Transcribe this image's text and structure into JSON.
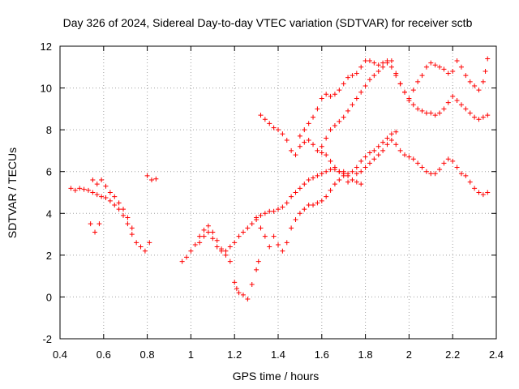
{
  "chart_data": {
    "type": "scatter",
    "title": "Day 326 of 2024, Sidereal Day-to-day VTEC variation (SDTVAR) for receiver sctb",
    "xlabel": "GPS time / hours",
    "ylabel": "SDTVAR / TECUs",
    "xlim": [
      0.4,
      2.4
    ],
    "ylim": [
      -2,
      12
    ],
    "xticks": [
      0.4,
      0.6,
      0.8,
      1,
      1.2,
      1.4,
      1.6,
      1.8,
      2,
      2.2,
      2.4
    ],
    "xtick_labels": [
      "0.4",
      "0.6",
      "0.8",
      "1",
      "1.2",
      "1.4",
      "1.6",
      "1.8",
      "2",
      "2.2",
      "2.4"
    ],
    "yticks": [
      -2,
      0,
      2,
      4,
      6,
      8,
      10,
      12
    ],
    "ytick_labels": [
      "-2",
      "0",
      "2",
      "4",
      "6",
      "8",
      "10",
      "12"
    ],
    "grid": true,
    "marker": "+",
    "marker_color": "#ff0000",
    "series": [
      {
        "name": "SDTVAR",
        "points": [
          [
            0.45,
            5.2
          ],
          [
            0.47,
            5.1
          ],
          [
            0.49,
            5.2
          ],
          [
            0.51,
            5.15
          ],
          [
            0.53,
            5.1
          ],
          [
            0.55,
            5.0
          ],
          [
            0.57,
            4.9
          ],
          [
            0.59,
            4.8
          ],
          [
            0.61,
            4.75
          ],
          [
            0.63,
            4.6
          ],
          [
            0.65,
            4.4
          ],
          [
            0.67,
            4.2
          ],
          [
            0.69,
            3.9
          ],
          [
            0.71,
            3.5
          ],
          [
            0.73,
            3.0
          ],
          [
            0.75,
            2.6
          ],
          [
            0.77,
            2.4
          ],
          [
            0.79,
            2.2
          ],
          [
            0.81,
            2.6
          ],
          [
            0.55,
            5.6
          ],
          [
            0.57,
            5.4
          ],
          [
            0.59,
            5.6
          ],
          [
            0.61,
            5.3
          ],
          [
            0.63,
            5.0
          ],
          [
            0.65,
            4.8
          ],
          [
            0.67,
            4.5
          ],
          [
            0.69,
            4.2
          ],
          [
            0.71,
            3.8
          ],
          [
            0.73,
            3.3
          ],
          [
            0.54,
            3.5
          ],
          [
            0.56,
            3.1
          ],
          [
            0.58,
            3.5
          ],
          [
            0.8,
            5.8
          ],
          [
            0.82,
            5.6
          ],
          [
            0.84,
            5.65
          ],
          [
            0.96,
            1.7
          ],
          [
            0.98,
            1.9
          ],
          [
            1.0,
            2.2
          ],
          [
            1.02,
            2.5
          ],
          [
            1.04,
            2.9
          ],
          [
            1.06,
            3.2
          ],
          [
            1.08,
            3.4
          ],
          [
            1.1,
            3.1
          ],
          [
            1.12,
            2.7
          ],
          [
            1.14,
            2.3
          ],
          [
            1.16,
            2.2
          ],
          [
            1.18,
            2.4
          ],
          [
            1.2,
            2.6
          ],
          [
            1.22,
            2.9
          ],
          [
            1.24,
            3.1
          ],
          [
            1.26,
            3.3
          ],
          [
            1.28,
            3.5
          ],
          [
            1.3,
            3.8
          ],
          [
            1.32,
            3.9
          ],
          [
            1.34,
            4.0
          ],
          [
            1.36,
            4.1
          ],
          [
            1.38,
            4.1
          ],
          [
            1.4,
            4.2
          ],
          [
            1.42,
            4.3
          ],
          [
            1.44,
            4.5
          ],
          [
            1.46,
            4.8
          ],
          [
            1.48,
            5.0
          ],
          [
            1.5,
            5.2
          ],
          [
            1.52,
            5.4
          ],
          [
            1.54,
            5.6
          ],
          [
            1.56,
            5.7
          ],
          [
            1.58,
            5.8
          ],
          [
            1.6,
            5.9
          ],
          [
            1.62,
            6.0
          ],
          [
            1.64,
            6.1
          ],
          [
            1.66,
            6.1
          ],
          [
            1.68,
            6.0
          ],
          [
            1.7,
            6.0
          ],
          [
            1.72,
            5.9
          ],
          [
            1.74,
            6.0
          ],
          [
            1.76,
            6.2
          ],
          [
            1.78,
            6.5
          ],
          [
            1.8,
            6.7
          ],
          [
            1.82,
            6.9
          ],
          [
            1.84,
            7.0
          ],
          [
            1.86,
            7.2
          ],
          [
            1.88,
            7.4
          ],
          [
            1.9,
            7.6
          ],
          [
            1.92,
            7.5
          ],
          [
            1.94,
            7.3
          ],
          [
            1.96,
            7.0
          ],
          [
            1.98,
            6.8
          ],
          [
            2.0,
            6.7
          ],
          [
            2.02,
            6.6
          ],
          [
            2.04,
            6.4
          ],
          [
            2.06,
            6.2
          ],
          [
            2.08,
            6.0
          ],
          [
            2.1,
            5.9
          ],
          [
            2.12,
            5.9
          ],
          [
            2.14,
            6.1
          ],
          [
            2.16,
            6.4
          ],
          [
            2.18,
            6.6
          ],
          [
            2.2,
            6.5
          ],
          [
            2.22,
            6.2
          ],
          [
            2.24,
            5.9
          ],
          [
            2.26,
            5.8
          ],
          [
            2.28,
            5.5
          ],
          [
            2.3,
            5.2
          ],
          [
            2.32,
            5.0
          ],
          [
            2.34,
            4.9
          ],
          [
            2.36,
            5.0
          ],
          [
            1.04,
            2.6
          ],
          [
            1.06,
            2.9
          ],
          [
            1.08,
            3.1
          ],
          [
            1.1,
            2.8
          ],
          [
            1.12,
            2.4
          ],
          [
            1.14,
            2.2
          ],
          [
            1.16,
            2.0
          ],
          [
            1.18,
            1.7
          ],
          [
            1.2,
            0.7
          ],
          [
            1.21,
            0.4
          ],
          [
            1.22,
            0.2
          ],
          [
            1.24,
            0.1
          ],
          [
            1.26,
            -0.1
          ],
          [
            1.28,
            0.6
          ],
          [
            1.3,
            1.3
          ],
          [
            1.31,
            1.7
          ],
          [
            1.3,
            3.7
          ],
          [
            1.32,
            3.3
          ],
          [
            1.34,
            2.9
          ],
          [
            1.36,
            2.4
          ],
          [
            1.38,
            2.9
          ],
          [
            1.4,
            2.5
          ],
          [
            1.42,
            2.2
          ],
          [
            1.44,
            2.6
          ],
          [
            1.46,
            3.3
          ],
          [
            1.48,
            3.7
          ],
          [
            1.5,
            4.0
          ],
          [
            1.52,
            4.2
          ],
          [
            1.54,
            4.4
          ],
          [
            1.56,
            4.4
          ],
          [
            1.58,
            4.5
          ],
          [
            1.6,
            4.6
          ],
          [
            1.62,
            4.8
          ],
          [
            1.64,
            5.1
          ],
          [
            1.66,
            5.4
          ],
          [
            1.68,
            5.6
          ],
          [
            1.7,
            5.8
          ],
          [
            1.72,
            5.5
          ],
          [
            1.74,
            5.6
          ],
          [
            1.76,
            5.9
          ],
          [
            1.78,
            6.0
          ],
          [
            1.8,
            6.2
          ],
          [
            1.82,
            6.4
          ],
          [
            1.84,
            6.6
          ],
          [
            1.86,
            6.8
          ],
          [
            1.88,
            7.0
          ],
          [
            1.9,
            7.3
          ],
          [
            1.92,
            7.8
          ],
          [
            1.94,
            7.9
          ],
          [
            1.32,
            8.7
          ],
          [
            1.34,
            8.5
          ],
          [
            1.36,
            8.3
          ],
          [
            1.38,
            8.1
          ],
          [
            1.4,
            8.0
          ],
          [
            1.42,
            7.8
          ],
          [
            1.44,
            7.5
          ],
          [
            1.46,
            7.0
          ],
          [
            1.48,
            6.8
          ],
          [
            1.5,
            7.2
          ],
          [
            1.52,
            7.4
          ],
          [
            1.54,
            7.5
          ],
          [
            1.56,
            7.3
          ],
          [
            1.58,
            7.0
          ],
          [
            1.6,
            6.9
          ],
          [
            1.62,
            6.8
          ],
          [
            1.64,
            6.5
          ],
          [
            1.66,
            6.2
          ],
          [
            1.68,
            6.0
          ],
          [
            1.7,
            5.9
          ],
          [
            1.72,
            5.8
          ],
          [
            1.74,
            5.6
          ],
          [
            1.76,
            5.5
          ],
          [
            1.78,
            5.4
          ],
          [
            1.5,
            7.7
          ],
          [
            1.52,
            8.0
          ],
          [
            1.54,
            8.3
          ],
          [
            1.56,
            8.6
          ],
          [
            1.58,
            9.0
          ],
          [
            1.6,
            9.5
          ],
          [
            1.62,
            9.7
          ],
          [
            1.64,
            9.6
          ],
          [
            1.66,
            9.7
          ],
          [
            1.68,
            9.9
          ],
          [
            1.7,
            10.2
          ],
          [
            1.72,
            10.5
          ],
          [
            1.74,
            10.6
          ],
          [
            1.76,
            10.7
          ],
          [
            1.78,
            11.0
          ],
          [
            1.8,
            11.3
          ],
          [
            1.82,
            11.3
          ],
          [
            1.84,
            11.2
          ],
          [
            1.86,
            11.1
          ],
          [
            1.88,
            11.2
          ],
          [
            1.9,
            11.3
          ],
          [
            1.92,
            11.0
          ],
          [
            1.94,
            10.6
          ],
          [
            1.96,
            10.2
          ],
          [
            1.98,
            9.8
          ],
          [
            2.0,
            9.4
          ],
          [
            2.02,
            9.2
          ],
          [
            2.04,
            9.0
          ],
          [
            2.06,
            8.9
          ],
          [
            2.08,
            8.8
          ],
          [
            2.1,
            8.8
          ],
          [
            2.12,
            8.7
          ],
          [
            2.14,
            8.8
          ],
          [
            2.16,
            9.0
          ],
          [
            2.18,
            9.3
          ],
          [
            2.2,
            9.6
          ],
          [
            2.22,
            9.4
          ],
          [
            2.24,
            9.2
          ],
          [
            2.26,
            9.0
          ],
          [
            2.28,
            8.8
          ],
          [
            2.3,
            8.6
          ],
          [
            2.32,
            8.5
          ],
          [
            2.34,
            8.6
          ],
          [
            2.36,
            8.7
          ],
          [
            1.6,
            7.2
          ],
          [
            1.62,
            7.6
          ],
          [
            1.64,
            8.0
          ],
          [
            1.66,
            8.2
          ],
          [
            1.68,
            8.4
          ],
          [
            1.7,
            8.6
          ],
          [
            1.72,
            8.9
          ],
          [
            1.74,
            9.2
          ],
          [
            1.76,
            9.5
          ],
          [
            1.78,
            9.8
          ],
          [
            1.8,
            10.1
          ],
          [
            1.82,
            10.4
          ],
          [
            1.84,
            10.6
          ],
          [
            1.86,
            10.8
          ],
          [
            1.88,
            11.0
          ],
          [
            1.9,
            11.2
          ],
          [
            1.92,
            11.3
          ],
          [
            1.94,
            10.7
          ],
          [
            1.96,
            10.2
          ],
          [
            1.98,
            9.8
          ],
          [
            2.0,
            9.5
          ],
          [
            2.02,
            9.9
          ],
          [
            2.04,
            10.3
          ],
          [
            2.06,
            10.6
          ],
          [
            2.08,
            11.0
          ],
          [
            2.1,
            11.2
          ],
          [
            2.12,
            11.1
          ],
          [
            2.14,
            11.0
          ],
          [
            2.16,
            10.9
          ],
          [
            2.18,
            10.7
          ],
          [
            2.2,
            10.8
          ],
          [
            2.22,
            11.3
          ],
          [
            2.24,
            11.0
          ],
          [
            2.26,
            10.6
          ],
          [
            2.28,
            10.3
          ],
          [
            2.3,
            10.1
          ],
          [
            2.32,
            9.9
          ],
          [
            2.34,
            10.3
          ],
          [
            2.35,
            10.8
          ],
          [
            2.36,
            11.4
          ]
        ]
      }
    ]
  }
}
